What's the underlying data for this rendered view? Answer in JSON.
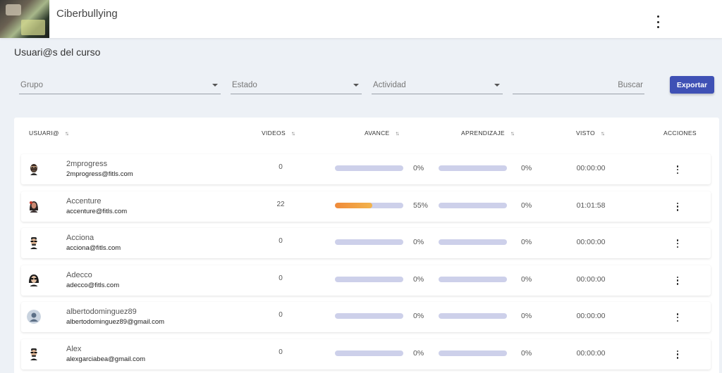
{
  "header": {
    "course_title": "Ciberbullying",
    "menu_icon": "more-vertical-icon"
  },
  "page": {
    "title": "Usuari@s del curso"
  },
  "filters": {
    "grupo": "Grupo",
    "estado": "Estado",
    "actividad": "Actividad",
    "search_placeholder": "Buscar",
    "export_label": "Exportar"
  },
  "table": {
    "headers": {
      "usuario": "USUARI@",
      "videos": "VIDEOS",
      "avance": "AVANCE",
      "aprendizaje": "APRENDIZAJE",
      "visto": "VISTO",
      "acciones": "ACCIONES"
    },
    "sort_icon": "sort-icon",
    "rows": [
      {
        "name": "2mprogress",
        "email": "2mprogress@fitls.com",
        "videos": "0",
        "avance": "0%",
        "avance_value": 0,
        "aprendizaje": "0%",
        "aprendizaje_value": 0,
        "visto": "00:00:00",
        "avatar": "bearded-man-avatar"
      },
      {
        "name": "Accenture",
        "email": "accenture@fitls.com",
        "videos": "22",
        "avance": "55%",
        "avance_value": 55,
        "aprendizaje": "0%",
        "aprendizaje_value": 0,
        "visto": "01:01:58",
        "avatar": "woman-avatar"
      },
      {
        "name": "Acciona",
        "email": "acciona@fitls.com",
        "videos": "0",
        "avance": "0%",
        "avance_value": 0,
        "aprendizaje": "0%",
        "aprendizaje_value": 0,
        "visto": "00:00:00",
        "avatar": "man-sunglasses-avatar"
      },
      {
        "name": "Adecco",
        "email": "adecco@fitls.com",
        "videos": "0",
        "avance": "0%",
        "avance_value": 0,
        "aprendizaje": "0%",
        "aprendizaje_value": 0,
        "visto": "00:00:00",
        "avatar": "woman-sunglasses-avatar"
      },
      {
        "name": "albertodominguez89",
        "email": "albertodominguez89@gmail.com",
        "videos": "0",
        "avance": "0%",
        "avance_value": 0,
        "aprendizaje": "0%",
        "aprendizaje_value": 0,
        "visto": "00:00:00",
        "avatar": "default-user-avatar"
      },
      {
        "name": "Alex",
        "email": "alexgarciabea@gmail.com",
        "videos": "0",
        "avance": "0%",
        "avance_value": 0,
        "aprendizaje": "0%",
        "aprendizaje_value": 0,
        "visto": "00:00:00",
        "avatar": "man-sunglasses-avatar"
      }
    ]
  }
}
